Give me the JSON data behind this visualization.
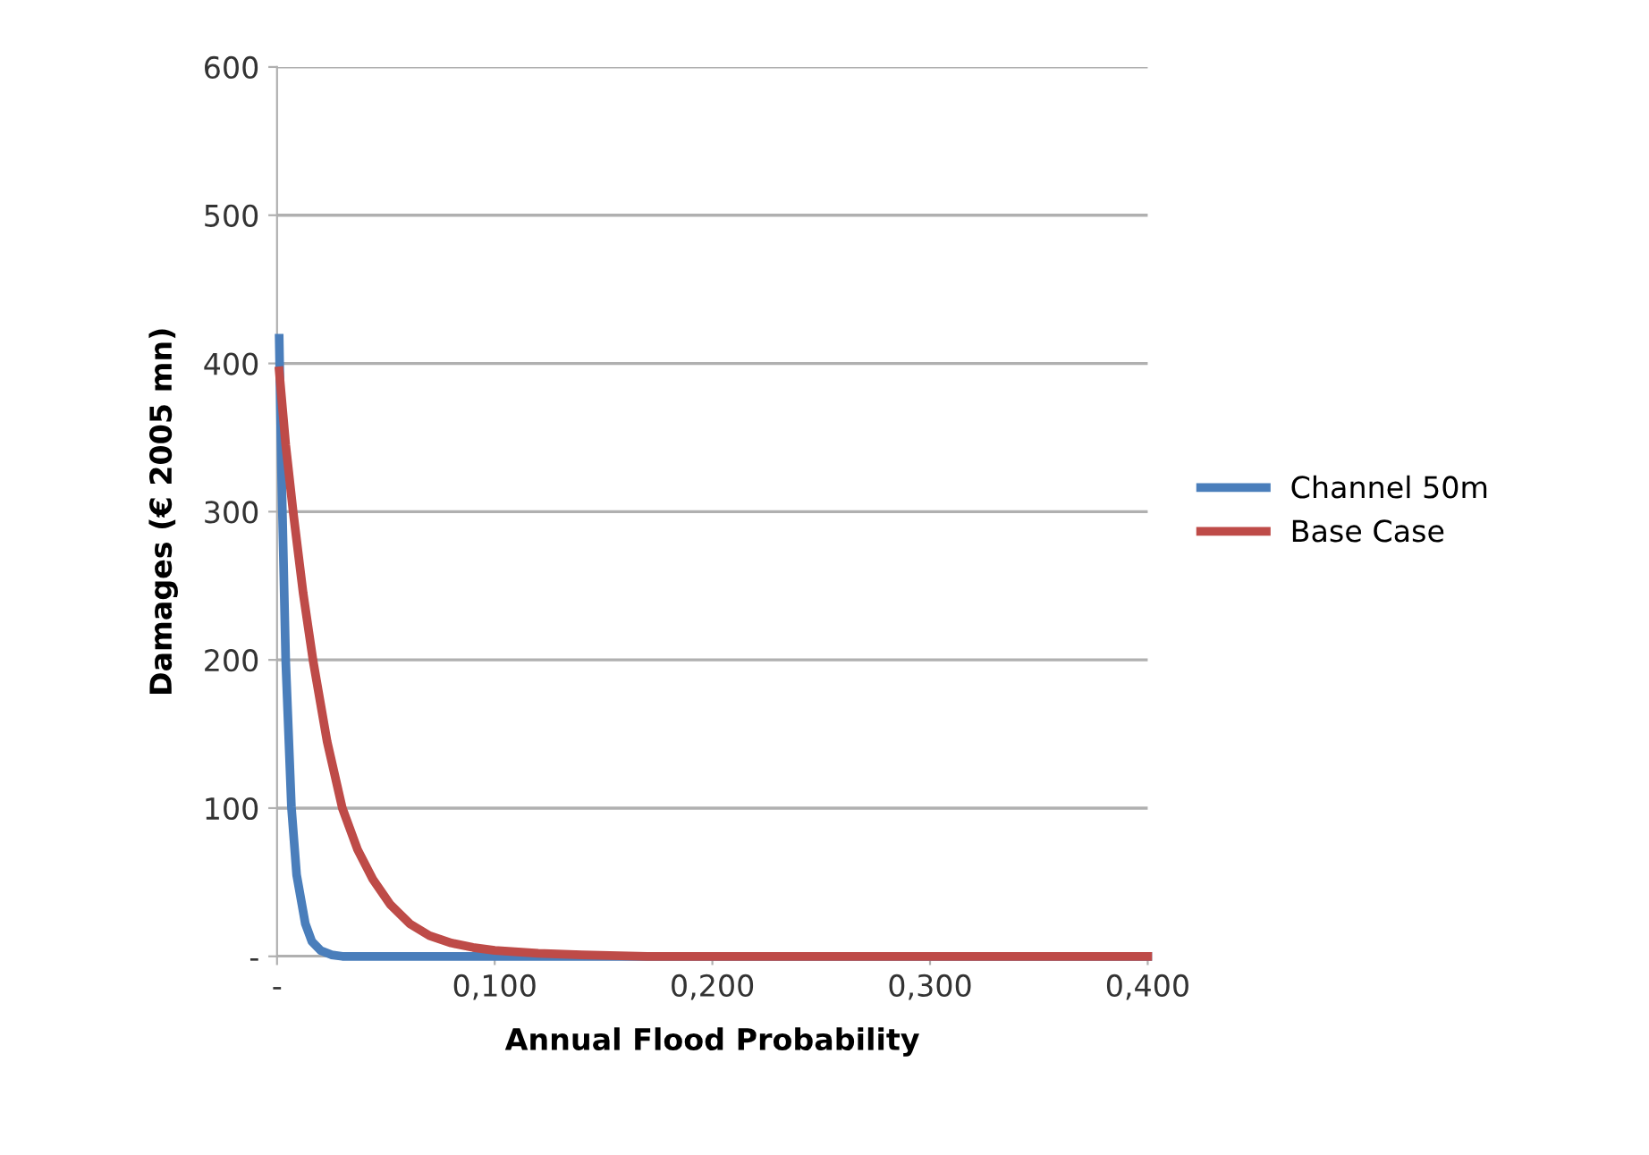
{
  "chart_data": {
    "type": "line",
    "xlabel": "Annual Flood Probability",
    "ylabel": "Damages (€ 2005 mn)",
    "xlim": [
      0,
      0.4
    ],
    "ylim": [
      0,
      600
    ],
    "xticks": [
      {
        "value": 0,
        "label": "-"
      },
      {
        "value": 0.1,
        "label": "0,100"
      },
      {
        "value": 0.2,
        "label": "0,200"
      },
      {
        "value": 0.3,
        "label": "0,300"
      },
      {
        "value": 0.4,
        "label": "0,400"
      }
    ],
    "yticks": [
      {
        "value": 0,
        "label": "-"
      },
      100,
      200,
      300,
      400,
      500,
      600
    ],
    "grid": "y",
    "legend": "right",
    "marker": "none",
    "line_style": "solid",
    "series": [
      {
        "name": "Channel 50m",
        "color": "#4a7ebb",
        "x": [
          0.001,
          0.002,
          0.004,
          0.0066,
          0.009,
          0.013,
          0.016,
          0.02,
          0.025,
          0.03,
          0.05,
          0.1,
          0.2,
          0.3,
          0.4
        ],
        "values": [
          417,
          330,
          199,
          101,
          55,
          22,
          10,
          4,
          1,
          0,
          0,
          0,
          0,
          0,
          0
        ]
      },
      {
        "name": "Base Case",
        "color": "#be4b48",
        "x": [
          0.001,
          0.004,
          0.0074,
          0.012,
          0.0165,
          0.023,
          0.03,
          0.037,
          0.044,
          0.052,
          0.061,
          0.07,
          0.08,
          0.09,
          0.1,
          0.12,
          0.14,
          0.17,
          0.2,
          0.3,
          0.4
        ],
        "values": [
          395,
          345,
          300,
          245,
          200,
          145,
          100,
          72,
          52,
          35,
          22,
          14,
          9,
          6,
          4,
          2,
          1,
          0,
          0,
          0,
          0
        ]
      }
    ]
  }
}
